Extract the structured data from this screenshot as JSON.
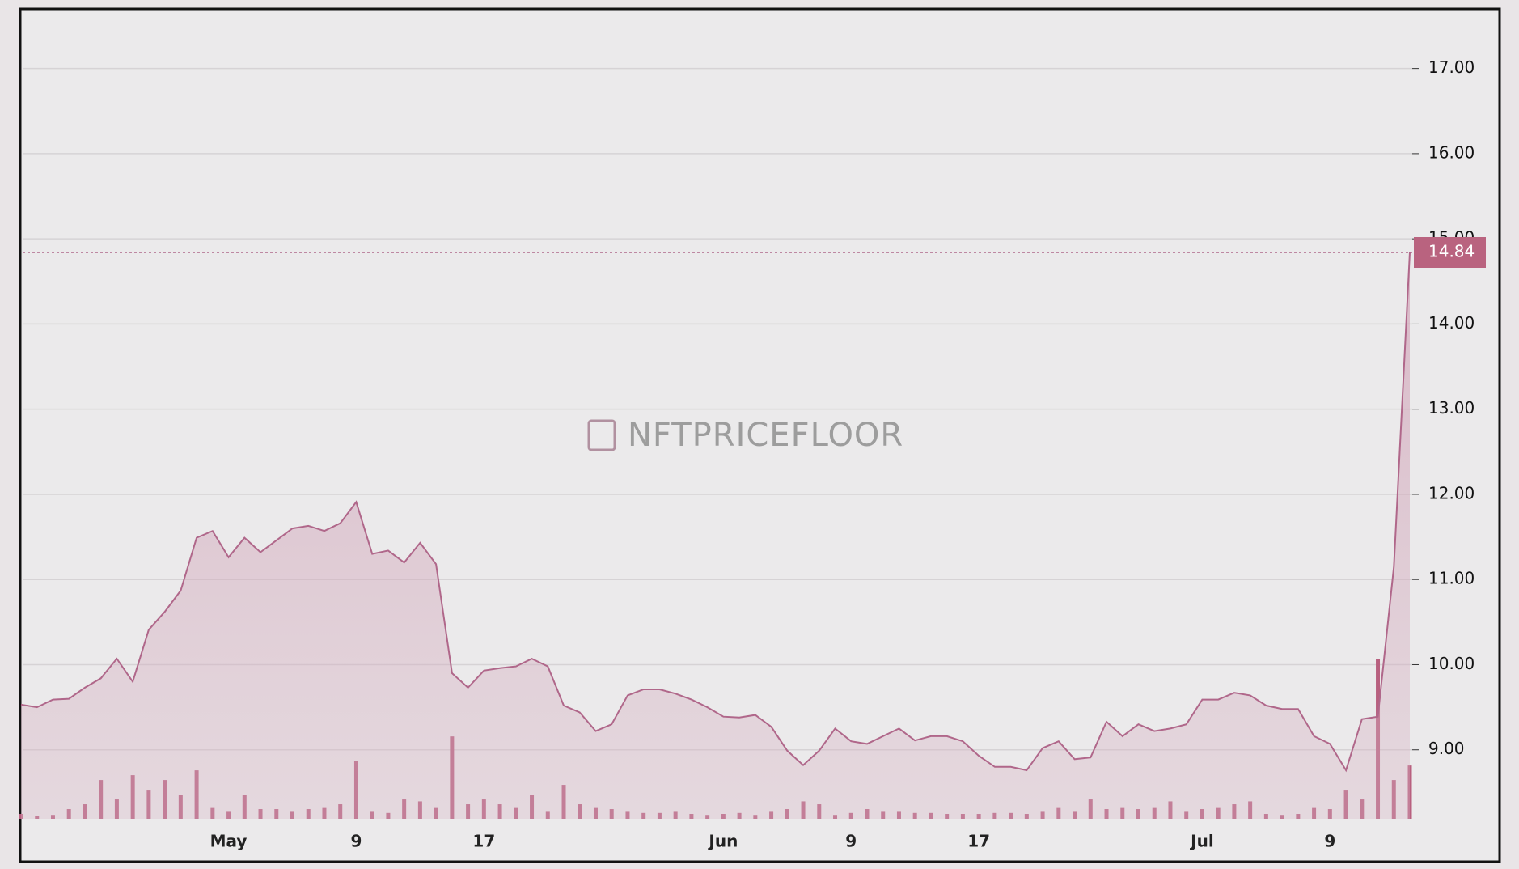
{
  "chart_data": {
    "type": "area",
    "watermark": "NFTPRICEFLOOR",
    "categories": [
      null,
      null,
      null,
      null,
      null,
      null,
      null,
      null,
      null,
      null,
      null,
      null,
      null,
      "May",
      null,
      null,
      null,
      null,
      null,
      null,
      null,
      "9",
      null,
      null,
      null,
      null,
      null,
      null,
      null,
      "17",
      null,
      null,
      null,
      null,
      null,
      null,
      null,
      null,
      null,
      null,
      null,
      null,
      null,
      null,
      "Jun",
      null,
      null,
      null,
      null,
      null,
      null,
      null,
      "9",
      null,
      null,
      null,
      null,
      null,
      null,
      null,
      "17",
      null,
      null,
      null,
      null,
      null,
      null,
      null,
      null,
      null,
      null,
      null,
      null,
      null,
      "Jul",
      null,
      null,
      null,
      null,
      null,
      null,
      null,
      "9",
      null,
      null,
      null,
      null,
      null
    ],
    "values": [
      9.53,
      9.5,
      9.59,
      9.6,
      9.73,
      9.84,
      10.07,
      9.8,
      10.41,
      10.62,
      10.87,
      11.49,
      11.57,
      11.26,
      11.49,
      11.32,
      11.46,
      11.6,
      11.63,
      11.57,
      11.66,
      11.91,
      11.3,
      11.34,
      11.2,
      11.43,
      11.18,
      9.9,
      9.73,
      9.93,
      9.96,
      9.98,
      10.07,
      9.98,
      9.52,
      9.44,
      9.22,
      9.3,
      9.64,
      9.71,
      9.71,
      9.66,
      9.59,
      9.5,
      9.39,
      9.38,
      9.41,
      9.27,
      8.99,
      8.82,
      8.99,
      9.25,
      9.1,
      9.07,
      9.16,
      9.25,
      9.11,
      9.16,
      9.16,
      9.1,
      8.93,
      8.8,
      8.8,
      8.76,
      9.02,
      9.1,
      8.89,
      8.91,
      9.33,
      9.16,
      9.3,
      9.22,
      9.25,
      9.3,
      9.59,
      9.59,
      9.67,
      9.64,
      9.52,
      9.48,
      9.48,
      9.16,
      9.07,
      8.76,
      9.36,
      9.39,
      11.15,
      14.84
    ],
    "color": "#b0678a",
    "volume": {
      "color": "#b8607f",
      "values": [
        5,
        3,
        4,
        10,
        15,
        40,
        20,
        45,
        30,
        40,
        25,
        50,
        12,
        8,
        25,
        10,
        10,
        8,
        10,
        12,
        15,
        60,
        8,
        6,
        20,
        18,
        12,
        85,
        15,
        20,
        15,
        12,
        25,
        8,
        35,
        15,
        12,
        10,
        8,
        6,
        6,
        8,
        5,
        4,
        5,
        6,
        4,
        8,
        10,
        18,
        15,
        4,
        6,
        10,
        8,
        8,
        6,
        6,
        5,
        5,
        5,
        6,
        6,
        5,
        8,
        12,
        8,
        20,
        10,
        12,
        10,
        12,
        18,
        8,
        10,
        12,
        15,
        18,
        5,
        4,
        5,
        12,
        10,
        30,
        20,
        165,
        40,
        55
      ]
    },
    "last_value": 14.84,
    "ylim": [
      8.19,
      17.69
    ],
    "yticks": [
      {
        "value": 9,
        "label": "9.00"
      },
      {
        "value": 10,
        "label": "10.00"
      },
      {
        "value": 11,
        "label": "11.00"
      },
      {
        "value": 12,
        "label": "12.00"
      },
      {
        "value": 13,
        "label": "13.00"
      },
      {
        "value": 14,
        "label": "14.00"
      },
      {
        "value": 15,
        "label": "15.00"
      },
      {
        "value": 16,
        "label": "16.00"
      },
      {
        "value": 17,
        "label": "17.00"
      }
    ],
    "grid": true
  }
}
